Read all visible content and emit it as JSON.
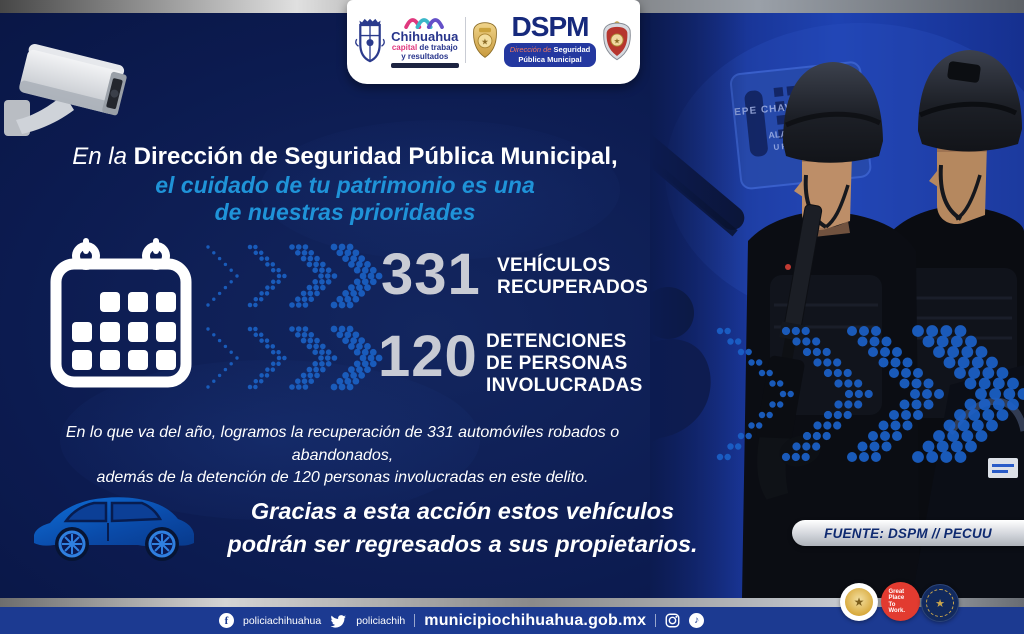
{
  "header": {
    "crest_name": "Escudo de Chihuahua",
    "chihuahua": {
      "name": "Chihuahua",
      "tag_capital": "capital",
      "tag_rest": " de trabajo",
      "tag_line2": "y resultados"
    },
    "dspm": {
      "acronym": "DSPM",
      "sub_prefix": "Dirección de ",
      "sub_bold": "Seguridad",
      "sub_line2": "Pública Municipal"
    }
  },
  "headline": {
    "intro": "En la ",
    "bold": "Dirección de Seguridad Pública Municipal,",
    "sub1": "el cuidado de tu patrimonio es una",
    "sub2": "de nuestras prioridades"
  },
  "stats": [
    {
      "value": "331",
      "lines": [
        "VEHÍCULOS",
        "RECUPERADOS"
      ]
    },
    {
      "value": "120",
      "lines": [
        "DETENCIONES",
        "DE PERSONAS",
        "INVOLUCRADAS"
      ]
    }
  ],
  "paragraph": {
    "line1": "En lo que va del año, logramos la recuperación de 331 automóviles robados o abandonados,",
    "line2": "además de la detención de 120 personas involucradas en este delito."
  },
  "cta": {
    "line1": "Gracias a esta acción estos vehículos",
    "line2": "podrán ser regresados a sus propietarios."
  },
  "source_badge": "FUENTE: DSPM // PECUU",
  "photo": {
    "patch1": "EPE CHAVEZ",
    "patch2": "ALAM",
    "patch3": "U POS"
  },
  "footer": {
    "facebook_handle": "policiachihuahua",
    "twitter_handle": "policiachih",
    "website": "municipiochihuahua.gob.mx"
  },
  "badges": {
    "gptw": "Great Place To Work."
  },
  "colors": {
    "background_navy": "#0b1a4e",
    "headline_blue": "#1f93d8",
    "chevron_blue": "#1a5fc0",
    "stat_number_silver": "#c8cbd4",
    "footer_blue": "#1c3a91",
    "dspm_navy": "#16297c",
    "gptw_red": "#e23b30",
    "car_blue": "#0e6fd8",
    "metallic_silver": "#b9bcc4"
  }
}
